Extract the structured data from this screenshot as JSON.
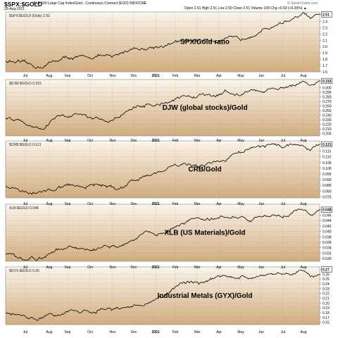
{
  "header": {
    "symbol": "$SPX:$GOLD",
    "description": "S&P 500 Large Cap Index/Gold - Continuous Contract (EOD) INDX/CME",
    "date": "25-Aug-2021",
    "ohlc": "Open 2.51  High 2.51  Low 2.50  Close 2.51  Volume 109  Chg +0.03 (+0.00%) ▲",
    "logo": "© StockCharts.com"
  },
  "x_axis": {
    "labels": [
      "Jul",
      "Aug",
      "Sep",
      "Oct",
      "Nov",
      "Dec",
      "2021",
      "Feb",
      "Mar",
      "Apr",
      "May",
      "Jun",
      "Jul",
      "Aug"
    ]
  },
  "colors": {
    "background_top": "#fbf5ec",
    "background_bottom": "#d2ad7f",
    "line": "#000000",
    "grid": "#b89a76"
  },
  "chart_data": [
    {
      "type": "line",
      "legend": "$SPX:$GOLD (Daily) 2.51",
      "annotation": "SPX/Gold ratio",
      "last_value": "2.51",
      "yticks": [
        "1.6",
        "1.7",
        "1.8",
        "1.9",
        "2.0",
        "2.1",
        "2.2",
        "2.3",
        "2.4",
        "2.51"
      ],
      "ylim": [
        1.6,
        2.55
      ],
      "anchors": [
        [
          0,
          1.77
        ],
        [
          0.05,
          1.74
        ],
        [
          0.09,
          1.68
        ],
        [
          0.12,
          1.69
        ],
        [
          0.16,
          1.78
        ],
        [
          0.2,
          1.83
        ],
        [
          0.25,
          1.82
        ],
        [
          0.3,
          1.86
        ],
        [
          0.34,
          1.82
        ],
        [
          0.38,
          1.93
        ],
        [
          0.41,
          1.98
        ],
        [
          0.45,
          1.97
        ],
        [
          0.5,
          2.02
        ],
        [
          0.55,
          2.07
        ],
        [
          0.6,
          2.1
        ],
        [
          0.65,
          2.12
        ],
        [
          0.68,
          2.1
        ],
        [
          0.71,
          2.12
        ],
        [
          0.75,
          2.11
        ],
        [
          0.78,
          2.2
        ],
        [
          0.82,
          2.26
        ],
        [
          0.84,
          2.3
        ],
        [
          0.86,
          2.35
        ],
        [
          0.9,
          2.42
        ],
        [
          0.93,
          2.46
        ],
        [
          0.95,
          2.52
        ],
        [
          0.97,
          2.44
        ],
        [
          1.0,
          2.51
        ]
      ]
    },
    {
      "type": "line",
      "legend": "$DJW:$GOLD 0.315",
      "annotation": "DJW (global stocks)/Gold",
      "last_value": "0.315",
      "yticks": [
        "0.200",
        "0.210",
        "0.220",
        "0.230",
        "0.240",
        "0.250",
        "0.260",
        "0.270",
        "0.280",
        "0.290",
        "0.300",
        "0.315"
      ],
      "ylim": [
        0.195,
        0.318
      ],
      "anchors": [
        [
          0,
          0.236
        ],
        [
          0.04,
          0.232
        ],
        [
          0.08,
          0.22
        ],
        [
          0.12,
          0.213
        ],
        [
          0.16,
          0.233
        ],
        [
          0.22,
          0.241
        ],
        [
          0.3,
          0.232
        ],
        [
          0.34,
          0.228
        ],
        [
          0.38,
          0.248
        ],
        [
          0.41,
          0.26
        ],
        [
          0.47,
          0.264
        ],
        [
          0.53,
          0.271
        ],
        [
          0.58,
          0.28
        ],
        [
          0.63,
          0.285
        ],
        [
          0.67,
          0.286
        ],
        [
          0.71,
          0.292
        ],
        [
          0.73,
          0.285
        ],
        [
          0.76,
          0.29
        ],
        [
          0.8,
          0.29
        ],
        [
          0.84,
          0.296
        ],
        [
          0.87,
          0.297
        ],
        [
          0.9,
          0.3
        ],
        [
          0.93,
          0.31
        ],
        [
          0.95,
          0.318
        ],
        [
          0.97,
          0.308
        ],
        [
          1.0,
          0.315
        ]
      ]
    },
    {
      "type": "line",
      "legend": "$CRB:$GOLD 0.121",
      "annotation": "CRB/Gold",
      "last_value": "0.121",
      "yticks": [
        "0.075",
        "0.080",
        "0.085",
        "0.090",
        "0.095",
        "0.100",
        "0.105",
        "0.110",
        "0.115",
        "0.121"
      ],
      "ylim": [
        0.074,
        0.124
      ],
      "anchors": [
        [
          0,
          0.085
        ],
        [
          0.05,
          0.08
        ],
        [
          0.1,
          0.078
        ],
        [
          0.14,
          0.08
        ],
        [
          0.2,
          0.085
        ],
        [
          0.24,
          0.083
        ],
        [
          0.3,
          0.085
        ],
        [
          0.36,
          0.082
        ],
        [
          0.4,
          0.089
        ],
        [
          0.46,
          0.093
        ],
        [
          0.52,
          0.1
        ],
        [
          0.56,
          0.103
        ],
        [
          0.6,
          0.101
        ],
        [
          0.66,
          0.104
        ],
        [
          0.7,
          0.108
        ],
        [
          0.74,
          0.112
        ],
        [
          0.78,
          0.117
        ],
        [
          0.82,
          0.118
        ],
        [
          0.86,
          0.121
        ],
        [
          0.88,
          0.119
        ],
        [
          0.92,
          0.123
        ],
        [
          0.95,
          0.12
        ],
        [
          0.97,
          0.116
        ],
        [
          1.0,
          0.121
        ]
      ]
    },
    {
      "type": "line",
      "legend": "XLB:$GOLD 0.048",
      "annotation": "XLB (US Materials)/Gold",
      "last_value": "0.048",
      "yticks": [
        "0.030",
        "0.032",
        "0.034",
        "0.036",
        "0.038",
        "0.040",
        "0.042",
        "0.044",
        "0.046",
        "0.048"
      ],
      "ylim": [
        0.029,
        0.05
      ],
      "anchors": [
        [
          0,
          0.032
        ],
        [
          0.06,
          0.03
        ],
        [
          0.12,
          0.03
        ],
        [
          0.16,
          0.033
        ],
        [
          0.2,
          0.034
        ],
        [
          0.26,
          0.033
        ],
        [
          0.32,
          0.035
        ],
        [
          0.36,
          0.034
        ],
        [
          0.4,
          0.037
        ],
        [
          0.45,
          0.04
        ],
        [
          0.5,
          0.039
        ],
        [
          0.55,
          0.042
        ],
        [
          0.6,
          0.045
        ],
        [
          0.65,
          0.044
        ],
        [
          0.7,
          0.046
        ],
        [
          0.74,
          0.045
        ],
        [
          0.78,
          0.044
        ],
        [
          0.82,
          0.046
        ],
        [
          0.86,
          0.046
        ],
        [
          0.9,
          0.046
        ],
        [
          0.94,
          0.049
        ],
        [
          0.97,
          0.046
        ],
        [
          1.0,
          0.048
        ]
      ]
    },
    {
      "type": "line",
      "legend": "$GYX:$GOLD 0.26",
      "annotation": "Industrial Metals (GYX)/Gold",
      "last_value": "0.26",
      "yticks": [
        "0.16",
        "0.17",
        "0.18",
        "0.19",
        "0.20",
        "0.21",
        "0.22",
        "0.23",
        "0.24",
        "0.25",
        "0.26",
        "0.27"
      ],
      "ylim": [
        0.155,
        0.275
      ],
      "anchors": [
        [
          0,
          0.18
        ],
        [
          0.06,
          0.173
        ],
        [
          0.1,
          0.167
        ],
        [
          0.16,
          0.176
        ],
        [
          0.22,
          0.184
        ],
        [
          0.28,
          0.18
        ],
        [
          0.32,
          0.188
        ],
        [
          0.38,
          0.193
        ],
        [
          0.44,
          0.196
        ],
        [
          0.5,
          0.214
        ],
        [
          0.54,
          0.233
        ],
        [
          0.58,
          0.245
        ],
        [
          0.62,
          0.242
        ],
        [
          0.66,
          0.251
        ],
        [
          0.7,
          0.258
        ],
        [
          0.73,
          0.252
        ],
        [
          0.76,
          0.254
        ],
        [
          0.8,
          0.25
        ],
        [
          0.84,
          0.256
        ],
        [
          0.88,
          0.258
        ],
        [
          0.92,
          0.262
        ],
        [
          0.95,
          0.27
        ],
        [
          0.97,
          0.255
        ],
        [
          1.0,
          0.26
        ]
      ]
    }
  ]
}
